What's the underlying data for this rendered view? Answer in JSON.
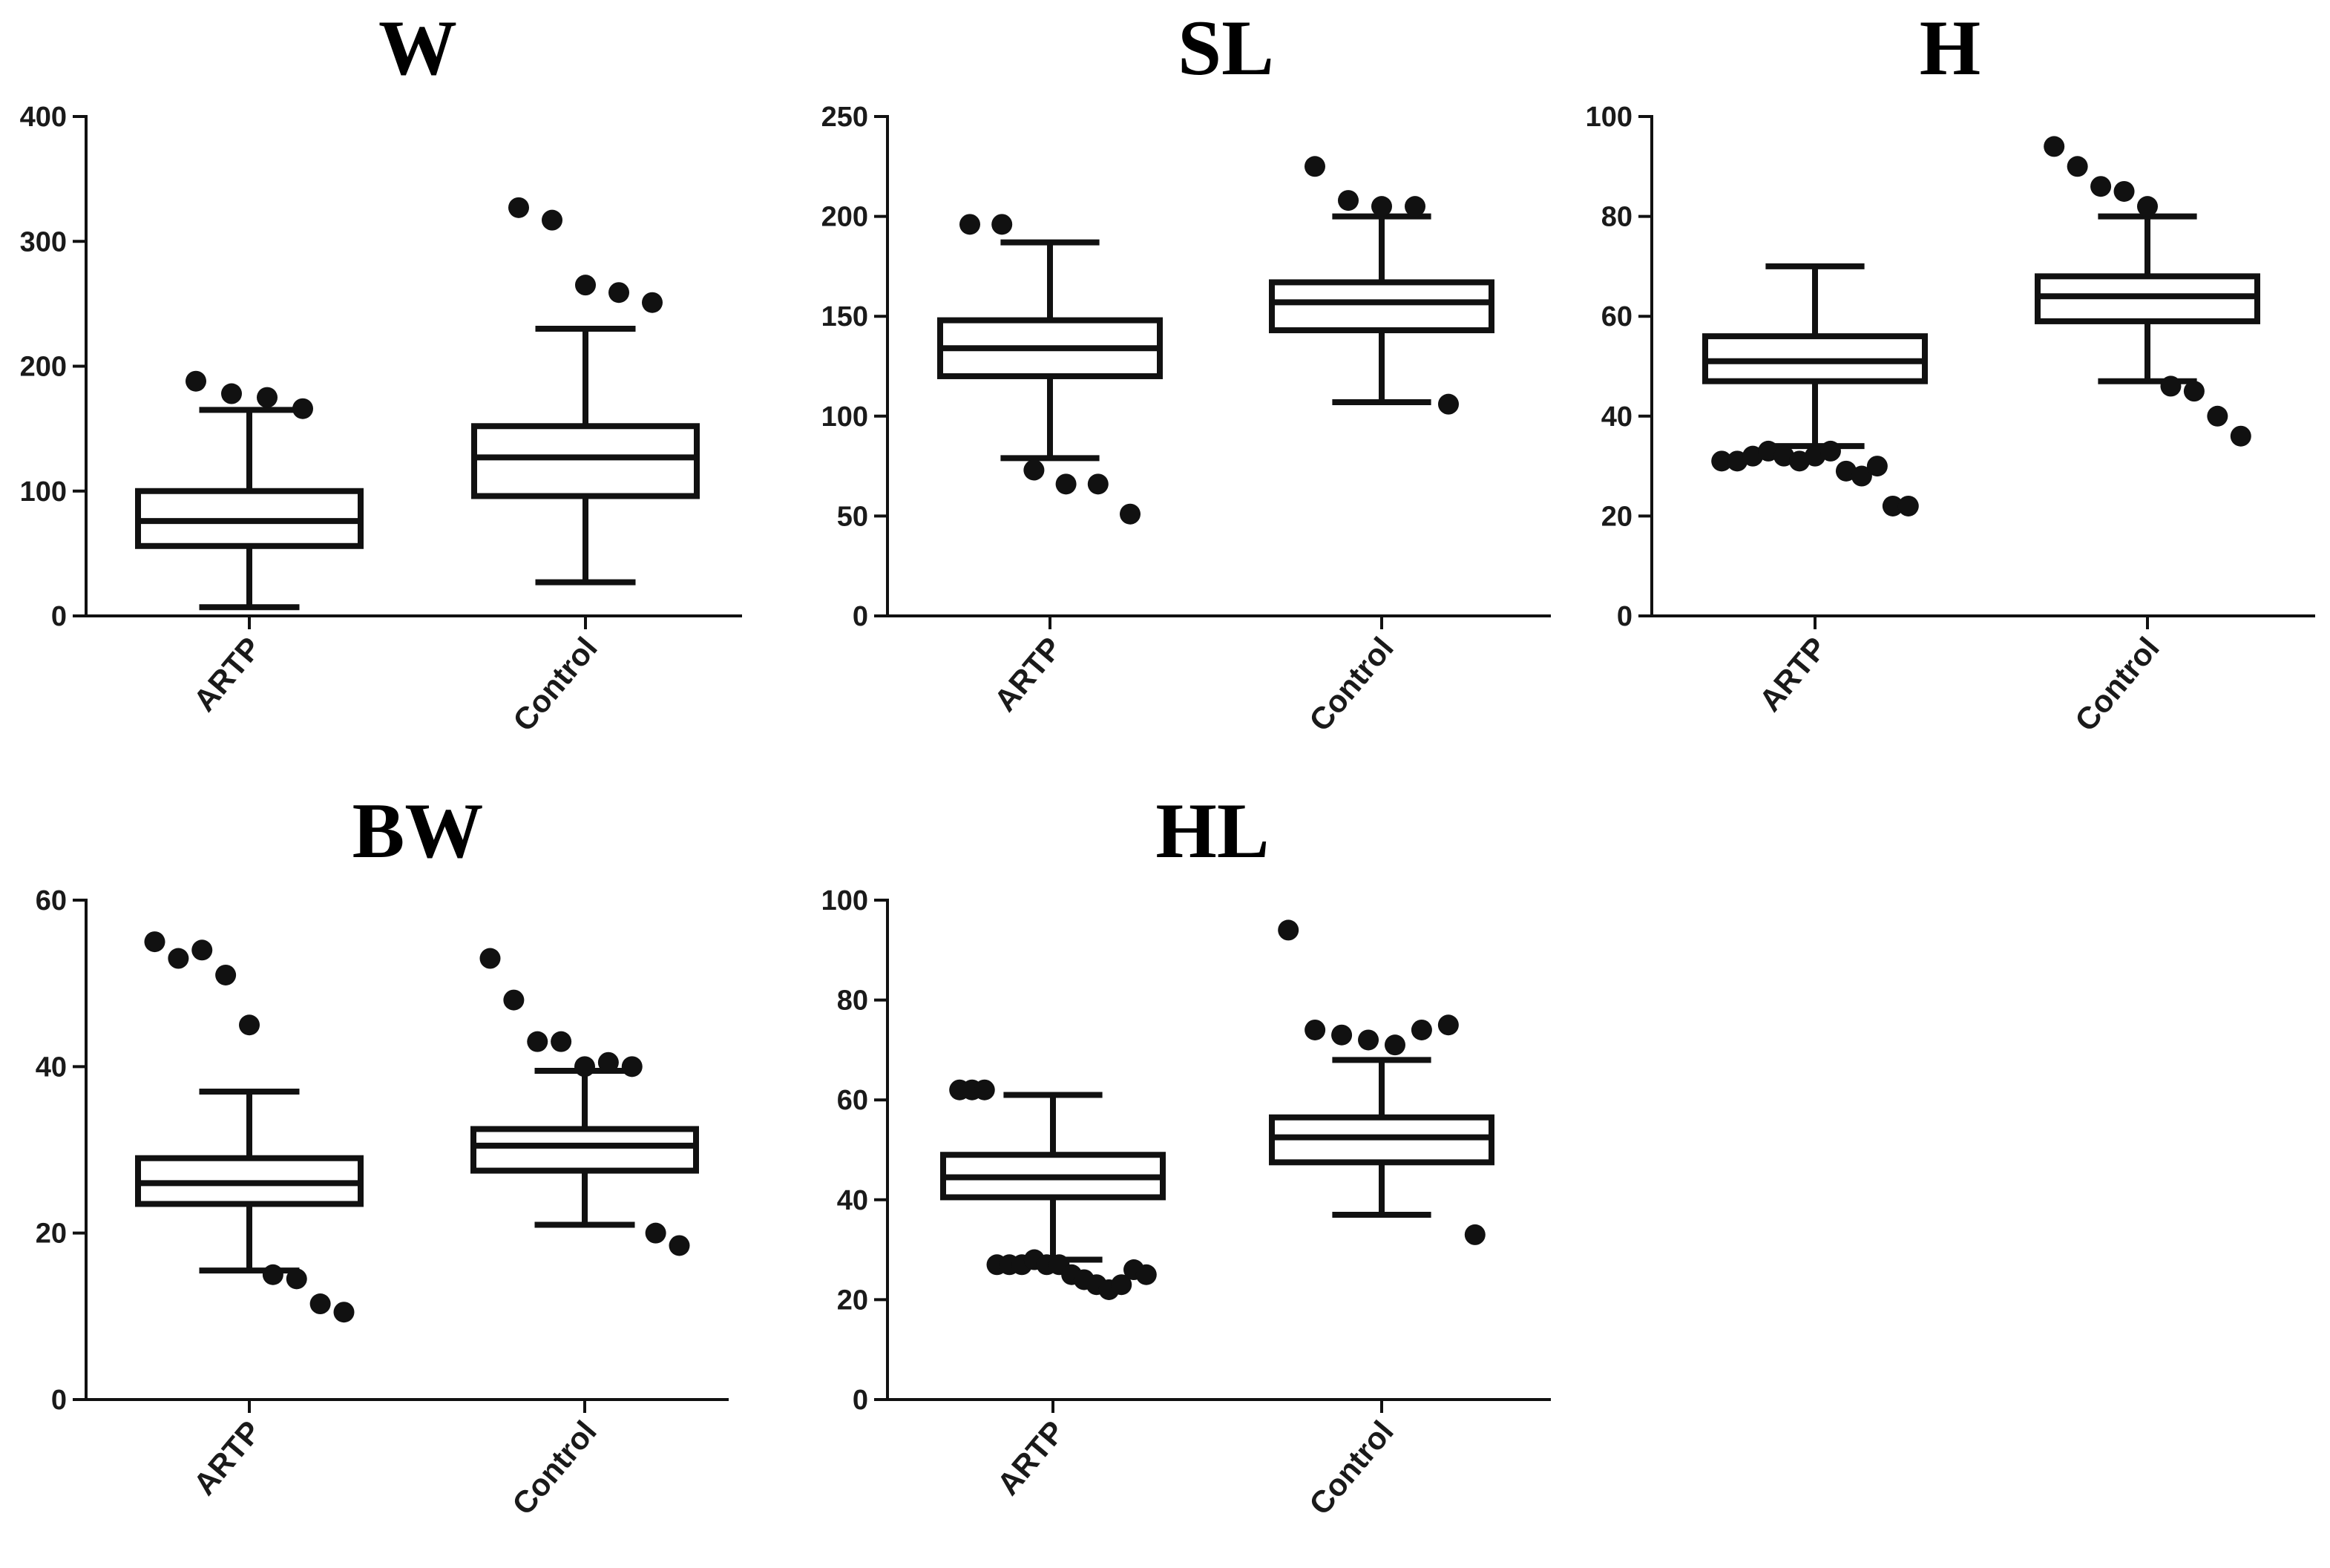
{
  "chart_data": [
    {
      "type": "box",
      "title": "W",
      "categories": [
        "ARTP",
        "Control"
      ],
      "ylim": [
        0,
        400
      ],
      "yticks": [
        0,
        100,
        200,
        300,
        400
      ],
      "boxes": [
        {
          "name": "ARTP",
          "whisker_low": 7,
          "q1": 56,
          "median": 76,
          "q3": 100,
          "whisker_high": 165,
          "outliers": [
            188,
            178,
            175,
            166
          ]
        },
        {
          "name": "Control",
          "whisker_low": 27,
          "q1": 96,
          "median": 127,
          "q3": 152,
          "whisker_high": 230,
          "outliers": [
            327,
            317,
            265,
            259,
            251
          ]
        }
      ]
    },
    {
      "type": "box",
      "title": "SL",
      "categories": [
        "ARTP",
        "Control"
      ],
      "ylim": [
        0,
        250
      ],
      "yticks": [
        0,
        50,
        100,
        150,
        200,
        250
      ],
      "boxes": [
        {
          "name": "ARTP",
          "whisker_low": 79,
          "q1": 120,
          "median": 134,
          "q3": 148,
          "whisker_high": 187,
          "outliers": [
            196,
            196,
            73,
            66,
            66,
            51
          ]
        },
        {
          "name": "Control",
          "whisker_low": 107,
          "q1": 143,
          "median": 157,
          "q3": 167,
          "whisker_high": 200,
          "outliers": [
            225,
            208,
            205,
            205,
            106
          ]
        }
      ]
    },
    {
      "type": "box",
      "title": "H",
      "categories": [
        "ARTP",
        "Control"
      ],
      "ylim": [
        0,
        100
      ],
      "yticks": [
        0,
        20,
        40,
        60,
        80,
        100
      ],
      "boxes": [
        {
          "name": "ARTP",
          "whisker_low": 34,
          "q1": 47,
          "median": 51,
          "q3": 56,
          "whisker_high": 70,
          "outliers": [
            31,
            31,
            32,
            33,
            32,
            31,
            32,
            33,
            29,
            28,
            30,
            22,
            22
          ]
        },
        {
          "name": "Control",
          "whisker_low": 47,
          "q1": 59,
          "median": 64,
          "q3": 68,
          "whisker_high": 80,
          "outliers": [
            94,
            90,
            86,
            85,
            82,
            46,
            45,
            40,
            36
          ]
        }
      ]
    },
    {
      "type": "box",
      "title": "BW",
      "categories": [
        "ARTP",
        "Control"
      ],
      "ylim": [
        0,
        60
      ],
      "yticks": [
        0,
        20,
        40,
        60
      ],
      "boxes": [
        {
          "name": "ARTP",
          "whisker_low": 15.5,
          "q1": 23.5,
          "median": 26,
          "q3": 29,
          "whisker_high": 37,
          "outliers": [
            55,
            53,
            54,
            51,
            45,
            15,
            14.5,
            11.5,
            10.5
          ]
        },
        {
          "name": "Control",
          "whisker_low": 21,
          "q1": 27.5,
          "median": 30.5,
          "q3": 32.5,
          "whisker_high": 39.5,
          "outliers": [
            53,
            48,
            43,
            43,
            40,
            40.5,
            40,
            20,
            18.5
          ]
        }
      ]
    },
    {
      "type": "box",
      "title": "HL",
      "categories": [
        "ARTP",
        "Control"
      ],
      "ylim": [
        0,
        100
      ],
      "yticks": [
        0,
        20,
        40,
        60,
        80,
        100
      ],
      "boxes": [
        {
          "name": "ARTP",
          "whisker_low": 28,
          "q1": 40.5,
          "median": 44.5,
          "q3": 49,
          "whisker_high": 61,
          "outliers": [
            62,
            62,
            62,
            27,
            27,
            27,
            28,
            27,
            27,
            25,
            24,
            23,
            22,
            23,
            26,
            25
          ]
        },
        {
          "name": "Control",
          "whisker_low": 37,
          "q1": 47.5,
          "median": 52.5,
          "q3": 56.5,
          "whisker_high": 68,
          "outliers": [
            94,
            74,
            73,
            72,
            71,
            74,
            75,
            33
          ]
        }
      ]
    }
  ]
}
